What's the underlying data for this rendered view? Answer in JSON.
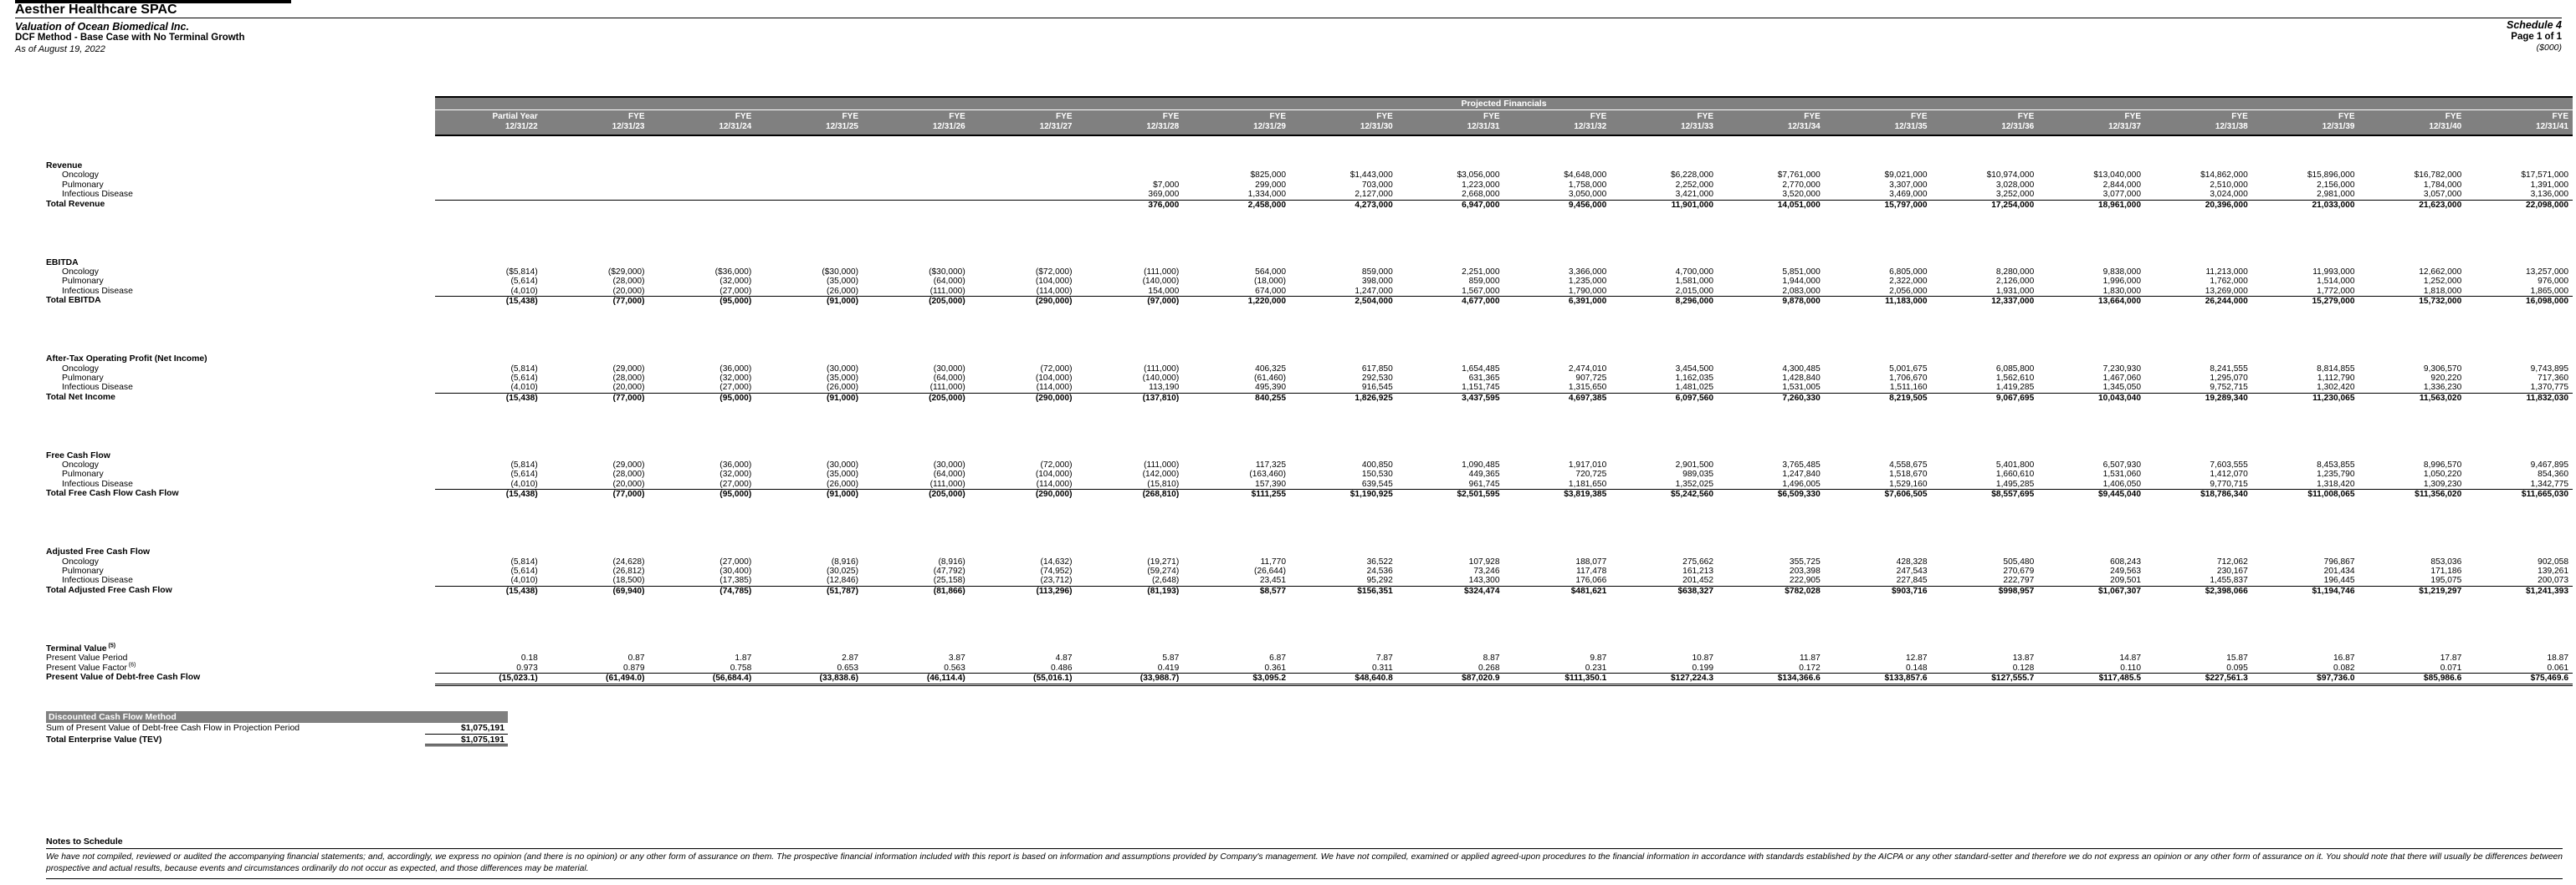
{
  "header": {
    "company": "Aesther Healthcare SPAC",
    "subject": "Valuation of Ocean Biomedical Inc.",
    "method": "DCF Method - Base Case with No Terminal Growth",
    "as_of": "As of August 19, 2022",
    "schedule": "Schedule 4",
    "page": "Page 1 of 1",
    "units": "($000)"
  },
  "colors": {
    "header_bg": "#808080",
    "header_text": "#ffffff"
  },
  "table": {
    "banner": "Projected Financials",
    "columns": [
      {
        "period": "Partial Year",
        "date": "12/31/22"
      },
      {
        "period": "FYE",
        "date": "12/31/23"
      },
      {
        "period": "FYE",
        "date": "12/31/24"
      },
      {
        "period": "FYE",
        "date": "12/31/25"
      },
      {
        "period": "FYE",
        "date": "12/31/26"
      },
      {
        "period": "FYE",
        "date": "12/31/27"
      },
      {
        "period": "FYE",
        "date": "12/31/28"
      },
      {
        "period": "FYE",
        "date": "12/31/29"
      },
      {
        "period": "FYE",
        "date": "12/31/30"
      },
      {
        "period": "FYE",
        "date": "12/31/31"
      },
      {
        "period": "FYE",
        "date": "12/31/32"
      },
      {
        "period": "FYE",
        "date": "12/31/33"
      },
      {
        "period": "FYE",
        "date": "12/31/34"
      },
      {
        "period": "FYE",
        "date": "12/31/35"
      },
      {
        "period": "FYE",
        "date": "12/31/36"
      },
      {
        "period": "FYE",
        "date": "12/31/37"
      },
      {
        "period": "FYE",
        "date": "12/31/38"
      },
      {
        "period": "FYE",
        "date": "12/31/39"
      },
      {
        "period": "FYE",
        "date": "12/31/40"
      },
      {
        "period": "FYE",
        "date": "12/31/41"
      }
    ],
    "sections": [
      {
        "title": "Revenue",
        "rows": [
          {
            "label": "Oncology",
            "values": [
              "",
              "",
              "",
              "",
              "",
              "",
              "",
              "$825,000",
              "$1,443,000",
              "$3,056,000",
              "$4,648,000",
              "$6,228,000",
              "$7,761,000",
              "$9,021,000",
              "$10,974,000",
              "$13,040,000",
              "$14,862,000",
              "$15,896,000",
              "$16,782,000",
              "$17,571,000"
            ]
          },
          {
            "label": "Pulmonary",
            "values": [
              "",
              "",
              "",
              "",
              "",
              "",
              "$7,000",
              "299,000",
              "703,000",
              "1,223,000",
              "1,758,000",
              "2,252,000",
              "2,770,000",
              "3,307,000",
              "3,028,000",
              "2,844,000",
              "2,510,000",
              "2,156,000",
              "1,784,000",
              "1,391,000"
            ]
          },
          {
            "label": "Infectious Disease",
            "values": [
              "",
              "",
              "",
              "",
              "",
              "",
              "369,000",
              "1,334,000",
              "2,127,000",
              "2,668,000",
              "3,050,000",
              "3,421,000",
              "3,520,000",
              "3,469,000",
              "3,252,000",
              "3,077,000",
              "3,024,000",
              "2,981,000",
              "3,057,000",
              "3,136,000"
            ]
          }
        ],
        "total": {
          "label": "Total Revenue",
          "values": [
            "",
            "",
            "",
            "",
            "",
            "",
            "376,000",
            "2,458,000",
            "4,273,000",
            "6,947,000",
            "9,456,000",
            "11,901,000",
            "14,051,000",
            "15,797,000",
            "17,254,000",
            "18,961,000",
            "20,396,000",
            "21,033,000",
            "21,623,000",
            "22,098,000"
          ]
        }
      },
      {
        "title": "EBITDA",
        "rows": [
          {
            "label": "Oncology",
            "values": [
              "($5,814)",
              "($29,000)",
              "($36,000)",
              "($30,000)",
              "($30,000)",
              "($72,000)",
              "(111,000)",
              "564,000",
              "859,000",
              "2,251,000",
              "3,366,000",
              "4,700,000",
              "5,851,000",
              "6,805,000",
              "8,280,000",
              "9,838,000",
              "11,213,000",
              "11,993,000",
              "12,662,000",
              "13,257,000"
            ]
          },
          {
            "label": "Pulmonary",
            "values": [
              "(5,614)",
              "(28,000)",
              "(32,000)",
              "(35,000)",
              "(64,000)",
              "(104,000)",
              "(140,000)",
              "(18,000)",
              "398,000",
              "859,000",
              "1,235,000",
              "1,581,000",
              "1,944,000",
              "2,322,000",
              "2,126,000",
              "1,996,000",
              "1,762,000",
              "1,514,000",
              "1,252,000",
              "976,000"
            ]
          },
          {
            "label": "Infectious Disease",
            "values": [
              "(4,010)",
              "(20,000)",
              "(27,000)",
              "(26,000)",
              "(111,000)",
              "(114,000)",
              "154,000",
              "674,000",
              "1,247,000",
              "1,567,000",
              "1,790,000",
              "2,015,000",
              "2,083,000",
              "2,056,000",
              "1,931,000",
              "1,830,000",
              "13,269,000",
              "1,772,000",
              "1,818,000",
              "1,865,000"
            ]
          }
        ],
        "total": {
          "label": "Total EBITDA",
          "values": [
            "(15,438)",
            "(77,000)",
            "(95,000)",
            "(91,000)",
            "(205,000)",
            "(290,000)",
            "(97,000)",
            "1,220,000",
            "2,504,000",
            "4,677,000",
            "6,391,000",
            "8,296,000",
            "9,878,000",
            "11,183,000",
            "12,337,000",
            "13,664,000",
            "26,244,000",
            "15,279,000",
            "15,732,000",
            "16,098,000"
          ]
        }
      },
      {
        "title": "After-Tax Operating Profit (Net Income)",
        "rows": [
          {
            "label": "Oncology",
            "values": [
              "(5,814)",
              "(29,000)",
              "(36,000)",
              "(30,000)",
              "(30,000)",
              "(72,000)",
              "(111,000)",
              "406,325",
              "617,850",
              "1,654,485",
              "2,474,010",
              "3,454,500",
              "4,300,485",
              "5,001,675",
              "6,085,800",
              "7,230,930",
              "8,241,555",
              "8,814,855",
              "9,306,570",
              "9,743,895"
            ]
          },
          {
            "label": "Pulmonary",
            "values": [
              "(5,614)",
              "(28,000)",
              "(32,000)",
              "(35,000)",
              "(64,000)",
              "(104,000)",
              "(140,000)",
              "(61,460)",
              "292,530",
              "631,365",
              "907,725",
              "1,162,035",
              "1,428,840",
              "1,706,670",
              "1,562,610",
              "1,467,060",
              "1,295,070",
              "1,112,790",
              "920,220",
              "717,360"
            ]
          },
          {
            "label": "Infectious Disease",
            "values": [
              "(4,010)",
              "(20,000)",
              "(27,000)",
              "(26,000)",
              "(111,000)",
              "(114,000)",
              "113,190",
              "495,390",
              "916,545",
              "1,151,745",
              "1,315,650",
              "1,481,025",
              "1,531,005",
              "1,511,160",
              "1,419,285",
              "1,345,050",
              "9,752,715",
              "1,302,420",
              "1,336,230",
              "1,370,775"
            ]
          }
        ],
        "total": {
          "label": "Total Net Income",
          "values": [
            "(15,438)",
            "(77,000)",
            "(95,000)",
            "(91,000)",
            "(205,000)",
            "(290,000)",
            "(137,810)",
            "840,255",
            "1,826,925",
            "3,437,595",
            "4,697,385",
            "6,097,560",
            "7,260,330",
            "8,219,505",
            "9,067,695",
            "10,043,040",
            "19,289,340",
            "11,230,065",
            "11,563,020",
            "11,832,030"
          ]
        }
      },
      {
        "title": "Free Cash Flow",
        "rows": [
          {
            "label": "Oncology",
            "values": [
              "(5,814)",
              "(29,000)",
              "(36,000)",
              "(30,000)",
              "(30,000)",
              "(72,000)",
              "(111,000)",
              "117,325",
              "400,850",
              "1,090,485",
              "1,917,010",
              "2,901,500",
              "3,765,485",
              "4,558,675",
              "5,401,800",
              "6,507,930",
              "7,603,555",
              "8,453,855",
              "8,996,570",
              "9,467,895"
            ]
          },
          {
            "label": "Pulmonary",
            "values": [
              "(5,614)",
              "(28,000)",
              "(32,000)",
              "(35,000)",
              "(64,000)",
              "(104,000)",
              "(142,000)",
              "(163,460)",
              "150,530",
              "449,365",
              "720,725",
              "989,035",
              "1,247,840",
              "1,518,670",
              "1,660,610",
              "1,531,060",
              "1,412,070",
              "1,235,790",
              "1,050,220",
              "854,360"
            ]
          },
          {
            "label": "Infectious Disease",
            "values": [
              "(4,010)",
              "(20,000)",
              "(27,000)",
              "(26,000)",
              "(111,000)",
              "(114,000)",
              "(15,810)",
              "157,390",
              "639,545",
              "961,745",
              "1,181,650",
              "1,352,025",
              "1,496,005",
              "1,529,160",
              "1,495,285",
              "1,406,050",
              "9,770,715",
              "1,318,420",
              "1,309,230",
              "1,342,775"
            ]
          }
        ],
        "total": {
          "label": "Total Free Cash Flow Cash Flow",
          "values": [
            "(15,438)",
            "(77,000)",
            "(95,000)",
            "(91,000)",
            "(205,000)",
            "(290,000)",
            "(268,810)",
            "$111,255",
            "$1,190,925",
            "$2,501,595",
            "$3,819,385",
            "$5,242,560",
            "$6,509,330",
            "$7,606,505",
            "$8,557,695",
            "$9,445,040",
            "$18,786,340",
            "$11,008,065",
            "$11,356,020",
            "$11,665,030"
          ]
        }
      },
      {
        "title": "Adjusted Free Cash Flow",
        "rows": [
          {
            "label": "Oncology",
            "values": [
              "(5,814)",
              "(24,628)",
              "(27,000)",
              "(8,916)",
              "(8,916)",
              "(14,632)",
              "(19,271)",
              "11,770",
              "36,522",
              "107,928",
              "188,077",
              "275,662",
              "355,725",
              "428,328",
              "505,480",
              "608,243",
              "712,062",
              "796,867",
              "853,036",
              "902,058"
            ]
          },
          {
            "label": "Pulmonary",
            "values": [
              "(5,614)",
              "(26,812)",
              "(30,400)",
              "(30,025)",
              "(47,792)",
              "(74,952)",
              "(59,274)",
              "(26,644)",
              "24,536",
              "73,246",
              "117,478",
              "161,213",
              "203,398",
              "247,543",
              "270,679",
              "249,563",
              "230,167",
              "201,434",
              "171,186",
              "139,261"
            ]
          },
          {
            "label": "Infectious Disease",
            "values": [
              "(4,010)",
              "(18,500)",
              "(17,385)",
              "(12,846)",
              "(25,158)",
              "(23,712)",
              "(2,648)",
              "23,451",
              "95,292",
              "143,300",
              "176,066",
              "201,452",
              "222,905",
              "227,845",
              "222,797",
              "209,501",
              "1,455,837",
              "196,445",
              "195,075",
              "200,073"
            ]
          }
        ],
        "total": {
          "label": "Total Adjusted Free Cash Flow",
          "values": [
            "(15,438)",
            "(69,940)",
            "(74,785)",
            "(51,787)",
            "(81,866)",
            "(113,296)",
            "(81,193)",
            "$8,577",
            "$156,351",
            "$324,474",
            "$481,621",
            "$638,327",
            "$782,028",
            "$903,716",
            "$998,957",
            "$1,067,307",
            "$2,398,066",
            "$1,194,746",
            "$1,219,297",
            "$1,241,393"
          ]
        }
      },
      {
        "title": "Terminal Value",
        "title_sup": "(5)",
        "rows": [
          {
            "label": "Present Value Period",
            "indent": false,
            "values": [
              "0.18",
              "0.87",
              "1.87",
              "2.87",
              "3.87",
              "4.87",
              "5.87",
              "6.87",
              "7.87",
              "8.87",
              "9.87",
              "10.87",
              "11.87",
              "12.87",
              "13.87",
              "14.87",
              "15.87",
              "16.87",
              "17.87",
              "18.87"
            ]
          },
          {
            "label": "Present Value Factor",
            "sup": "(6)",
            "indent": false,
            "values": [
              "0.973",
              "0.879",
              "0.758",
              "0.653",
              "0.563",
              "0.486",
              "0.419",
              "0.361",
              "0.311",
              "0.268",
              "0.231",
              "0.199",
              "0.172",
              "0.148",
              "0.128",
              "0.110",
              "0.095",
              "0.082",
              "0.071",
              "0.061"
            ]
          }
        ],
        "total": {
          "label": "Present Value of Debt-free Cash Flow",
          "double": true,
          "values": [
            "(15,023.1)",
            "(61,494.0)",
            "(56,684.4)",
            "(33,838.6)",
            "(46,114.4)",
            "(55,016.1)",
            "(33,988.7)",
            "$3,095.2",
            "$48,640.8",
            "$87,020.9",
            "$111,350.1",
            "$127,224.3",
            "$134,366.6",
            "$133,857.6",
            "$127,555.7",
            "$117,485.5",
            "$227,561.3",
            "$97,736.0",
            "$85,986.6",
            "$75,469.6"
          ]
        }
      }
    ]
  },
  "dcf": {
    "title": "Discounted Cash Flow Method",
    "rows": [
      {
        "label": "Sum of Present Value of Debt-free Cash Flow in Projection Period",
        "value": "$1,075,191"
      },
      {
        "label": "Total Enterprise Value (TEV)",
        "value": "$1,075,191"
      }
    ]
  },
  "notes": {
    "title": "Notes to Schedule",
    "body": "We have not compiled, reviewed or audited the accompanying financial statements; and, accordingly, we express no opinion (and there is no opinion) or any other form of assurance on them.  The prospective financial information included with this report is based on information and assumptions provided by Company's management.  We have not compiled, examined or applied agreed-upon procedures to the financial information in accordance with standards established by the AICPA or any other standard-setter and therefore we do not express an opinion or any other form of assurance on it.  You should note that there will usually be differences between prospective and actual results, because events and circumstances ordinarily do not occur as expected, and those differences may be material."
  }
}
